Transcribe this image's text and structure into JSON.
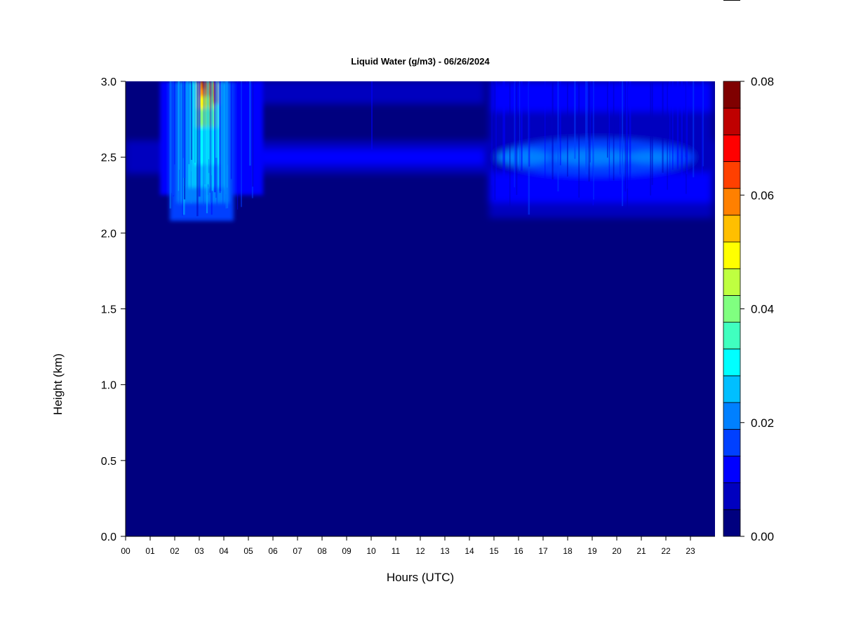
{
  "chart_data": {
    "type": "heatmap",
    "title": "Liquid Water (g/m3) - 06/26/2024",
    "xlabel": "Hours (UTC)",
    "ylabel": "Height (km)",
    "xlim": [
      0,
      24
    ],
    "ylim": [
      0,
      3
    ],
    "x_tick_labels": [
      "00",
      "01",
      "02",
      "03",
      "04",
      "05",
      "06",
      "07",
      "08",
      "09",
      "10",
      "11",
      "12",
      "13",
      "14",
      "15",
      "16",
      "17",
      "18",
      "19",
      "20",
      "21",
      "22",
      "23"
    ],
    "y_tick_labels": [
      "0.0",
      "0.5",
      "1.0",
      "1.5",
      "2.0",
      "2.5",
      "3.0"
    ],
    "colorbar": {
      "range": [
        0,
        0.08
      ],
      "levels": [
        0,
        0.005,
        0.01,
        0.015,
        0.02,
        0.025,
        0.03,
        0.035,
        0.04,
        0.045,
        0.05,
        0.055,
        0.06,
        0.065,
        0.07,
        0.075,
        0.08
      ],
      "colors": [
        "#00007F",
        "#0000BF",
        "#0000FF",
        "#0040FF",
        "#0080FF",
        "#00BFFF",
        "#00FFFF",
        "#40FFBF",
        "#80FF80",
        "#BFFF40",
        "#FFFF00",
        "#FFBF00",
        "#FF8000",
        "#FF4000",
        "#FF0000",
        "#BF0000",
        "#7F0000"
      ],
      "tick_labels": [
        "0.00",
        "0.02",
        "0.04",
        "0.06",
        "0.08"
      ]
    },
    "cloud_features": [
      {
        "name": "early cloud band",
        "hours": [
          1.4,
          5.6
        ],
        "base_km": 2.08,
        "top_km": 3.0,
        "peak_g_m3": 0.08
      },
      {
        "name": "thin layer",
        "hours": [
          0,
          24
        ],
        "height_km": 2.5,
        "lwc_g_m3": 0.01
      },
      {
        "name": "afternoon cloud layer",
        "hours": [
          14.8,
          23.9
        ],
        "base_km": 2.1,
        "top_km": 3.0,
        "peak_g_m3": 0.025
      }
    ],
    "grid": false,
    "legend": "none"
  }
}
